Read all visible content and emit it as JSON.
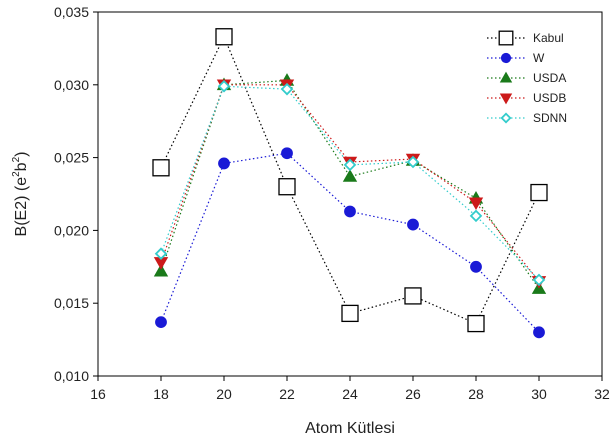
{
  "chart_data": {
    "type": "line",
    "xlabel": "Atom Kütlesi",
    "ylabel": {
      "base": "B(E2) (e",
      "sup1": "2",
      "mid": "b",
      "sup2": "2",
      "end": ")"
    },
    "xlim": [
      16,
      32
    ],
    "ylim": [
      0.01,
      0.035
    ],
    "x_ticks": [
      16,
      18,
      20,
      22,
      24,
      26,
      28,
      30,
      32
    ],
    "x_tick_labels": [
      "16",
      "18",
      "20",
      "22",
      "24",
      "26",
      "28",
      "30",
      "32"
    ],
    "y_ticks": [
      0.01,
      0.015,
      0.02,
      0.025,
      0.03,
      0.035
    ],
    "y_tick_labels": [
      "0,010",
      "0,015",
      "0,020",
      "0,025",
      "0,030",
      "0,035"
    ],
    "grid": false,
    "legend_position": "top-right",
    "series": [
      {
        "name": "Kabul",
        "marker": "square-open",
        "color": "#000000",
        "x": [
          18,
          20,
          22,
          24,
          26,
          28,
          30
        ],
        "y": [
          0.0243,
          0.0333,
          0.023,
          0.0143,
          0.0155,
          0.0136,
          0.0226
        ]
      },
      {
        "name": "W",
        "marker": "circle",
        "color": "#1a1ad6",
        "x": [
          18,
          20,
          22,
          24,
          26,
          28,
          30
        ],
        "y": [
          0.0137,
          0.0246,
          0.0253,
          0.0213,
          0.0204,
          0.0175,
          0.013
        ]
      },
      {
        "name": "USDA",
        "marker": "triangle-up",
        "color": "#1a7a1a",
        "x": [
          18,
          20,
          22,
          24,
          26,
          28,
          30
        ],
        "y": [
          0.0172,
          0.03,
          0.0303,
          0.0237,
          0.0248,
          0.0222,
          0.016
        ]
      },
      {
        "name": "USDB",
        "marker": "triangle-down",
        "color": "#cc1a1a",
        "x": [
          18,
          20,
          22,
          24,
          26,
          28,
          30
        ],
        "y": [
          0.0178,
          0.03,
          0.03,
          0.0247,
          0.0249,
          0.0219,
          0.0165
        ]
      },
      {
        "name": "SDNN",
        "marker": "diamond-open",
        "color": "#33cccc",
        "x": [
          18,
          20,
          22,
          24,
          26,
          28,
          30
        ],
        "y": [
          0.0184,
          0.0299,
          0.0297,
          0.0245,
          0.0247,
          0.021,
          0.0166
        ]
      }
    ]
  }
}
